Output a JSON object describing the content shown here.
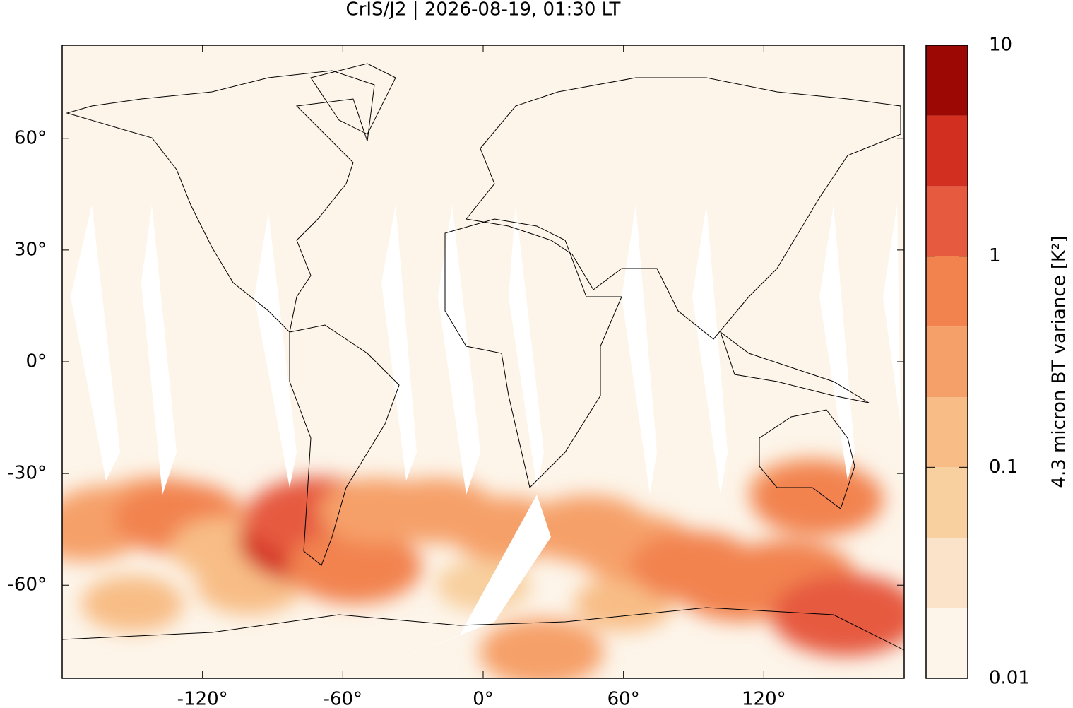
{
  "chart_data": {
    "type": "map",
    "title": "CrIS/J2 | 2026-08-19, 01:30 LT",
    "xlim": [
      -180,
      180
    ],
    "ylim": [
      -85,
      85
    ],
    "xticks": [
      {
        "value": -120,
        "label": "-120°"
      },
      {
        "value": -60,
        "label": "-60°"
      },
      {
        "value": 0,
        "label": "0°"
      },
      {
        "value": 60,
        "label": "60°"
      },
      {
        "value": 120,
        "label": "120°"
      }
    ],
    "yticks": [
      {
        "value": 60,
        "label": "60°"
      },
      {
        "value": 30,
        "label": "30°"
      },
      {
        "value": 0,
        "label": "0°"
      },
      {
        "value": -30,
        "label": "-30°"
      },
      {
        "value": -60,
        "label": "-60°"
      }
    ],
    "x": [
      -170,
      -160,
      -140,
      -130,
      -110,
      -150,
      -100,
      -70,
      -70,
      -55,
      -45,
      -20,
      0,
      10,
      45,
      60,
      65,
      90,
      110,
      130,
      140,
      143,
      155,
      25
    ],
    "y": [
      -45,
      -42,
      -40,
      -42,
      -50,
      -65,
      -60,
      -48,
      -42,
      -55,
      -40,
      -40,
      -60,
      -45,
      -45,
      -65,
      -50,
      -55,
      -60,
      -58,
      -35,
      -37,
      -68,
      -78
    ],
    "values": [
      0.25,
      0.3,
      0.4,
      0.6,
      0.2,
      0.12,
      0.15,
      3,
      1.5,
      0.7,
      0.3,
      0.3,
      0.08,
      0.3,
      0.4,
      0.1,
      0.4,
      0.5,
      0.6,
      0.8,
      0.4,
      0.6,
      1.5,
      0.4
    ],
    "colorbar": {
      "label": "4.3 micron BT variance [K²]",
      "log_scale": true,
      "lim": [
        0.01,
        10
      ],
      "ticks": [
        0.01,
        0.1,
        1,
        10
      ],
      "levels": [
        0.01,
        0.0215,
        0.0464,
        0.1,
        0.215,
        0.464,
        1,
        2.15,
        4.64,
        10
      ],
      "colors": [
        "#fdf5ea",
        "#fae3c8",
        "#f8cf9e",
        "#f8bd86",
        "#f6a069",
        "#f2834f",
        "#e65a40",
        "#d22f20",
        "#9c0804"
      ]
    }
  }
}
